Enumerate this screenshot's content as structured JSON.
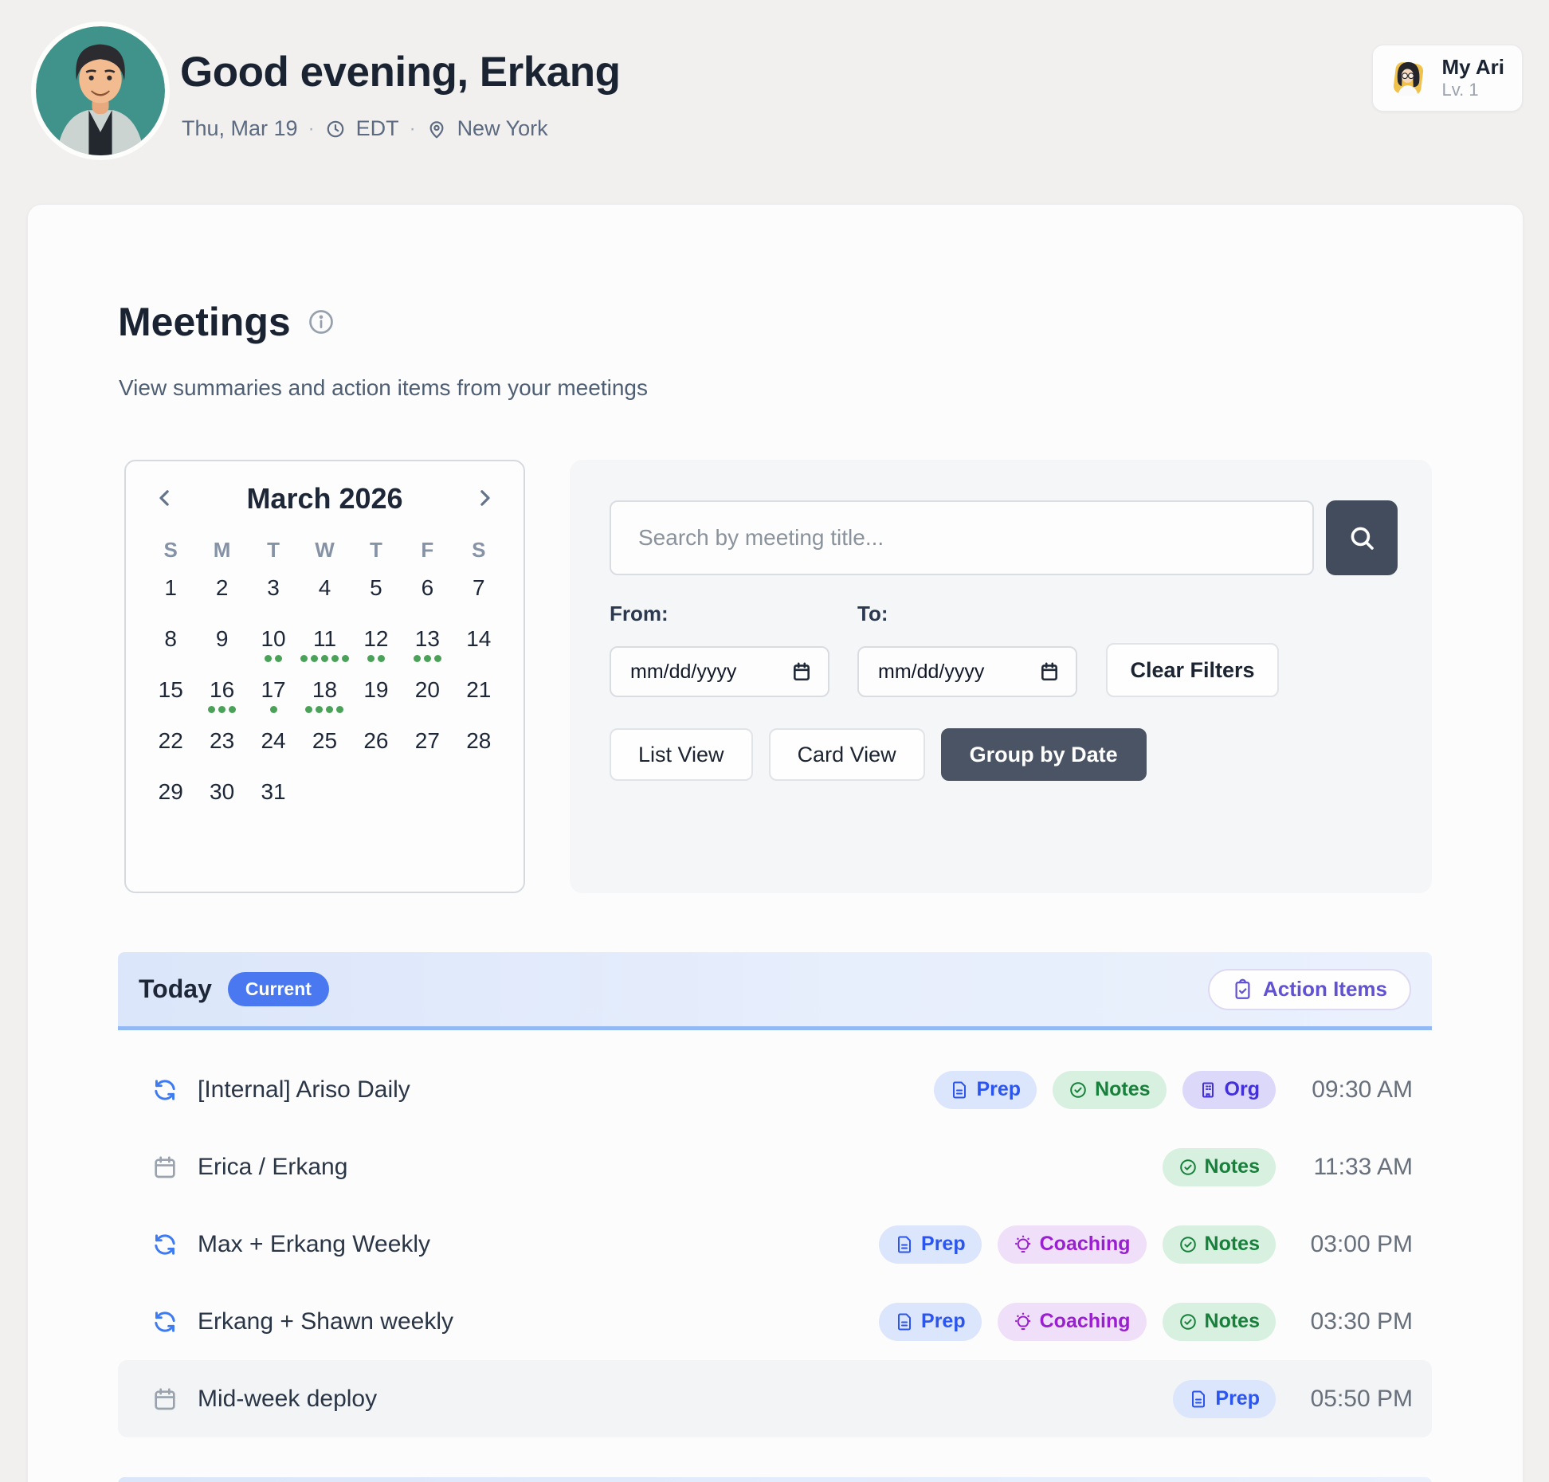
{
  "header": {
    "greeting": "Good evening, Erkang",
    "date": "Thu, Mar 19",
    "separator": "·",
    "timezone": "EDT",
    "location": "New York",
    "ari": {
      "title": "My Ari",
      "level": "Lv. 1"
    }
  },
  "page": {
    "title": "Meetings",
    "subtitle": "View summaries and action items from your meetings"
  },
  "calendar": {
    "month_label": "March 2026",
    "day_headers": [
      "S",
      "M",
      "T",
      "W",
      "T",
      "F",
      "S"
    ],
    "weeks": [
      [
        1,
        2,
        3,
        4,
        5,
        6,
        7
      ],
      [
        8,
        9,
        10,
        11,
        12,
        13,
        14
      ],
      [
        15,
        16,
        17,
        18,
        19,
        20,
        21
      ],
      [
        22,
        23,
        24,
        25,
        26,
        27,
        28
      ],
      [
        29,
        30,
        31,
        null,
        null,
        null,
        null
      ]
    ],
    "event_dots": {
      "10": 2,
      "11": 5,
      "12": 2,
      "13": 3,
      "16": 3,
      "17": 1,
      "18": 4
    },
    "dot_color": "#4aa258"
  },
  "filters": {
    "search_placeholder": "Search by meeting title...",
    "from_label": "From:",
    "to_label": "To:",
    "date_placeholder": "mm/dd/yyyy",
    "clear_button": "Clear Filters",
    "view_buttons": [
      {
        "label": "List View",
        "active": false
      },
      {
        "label": "Card View",
        "active": false
      },
      {
        "label": "Group by Date",
        "active": true
      }
    ]
  },
  "group": {
    "title": "Today",
    "badge": "Current",
    "action_items_label": "Action Items"
  },
  "meetings": [
    {
      "title": "[Internal] Ariso Daily",
      "recurring": true,
      "time": "09:30 AM",
      "tags": [
        "prep",
        "notes",
        "org"
      ],
      "highlighted": false
    },
    {
      "title": "Erica / Erkang",
      "recurring": false,
      "time": "11:33 AM",
      "tags": [
        "notes"
      ],
      "highlighted": false
    },
    {
      "title": "Max + Erkang Weekly",
      "recurring": true,
      "time": "03:00 PM",
      "tags": [
        "prep",
        "coaching",
        "notes"
      ],
      "highlighted": false
    },
    {
      "title": "Erkang + Shawn weekly",
      "recurring": true,
      "time": "03:30 PM",
      "tags": [
        "prep",
        "coaching",
        "notes"
      ],
      "highlighted": false
    },
    {
      "title": "Mid-week deploy",
      "recurring": false,
      "time": "05:50 PM",
      "tags": [
        "prep"
      ],
      "highlighted": true
    }
  ],
  "tag_defs": {
    "prep": {
      "label": "Prep",
      "bg": "#dbe5fc",
      "color": "#2b55ee",
      "icon": "document-icon"
    },
    "notes": {
      "label": "Notes",
      "bg": "#d7f0df",
      "color": "#17803a",
      "icon": "check-circle-icon"
    },
    "org": {
      "label": "Org",
      "bg": "#dbd8fa",
      "color": "#4231da",
      "icon": "building-icon"
    },
    "coaching": {
      "label": "Coaching",
      "bg": "#efdff9",
      "color": "#9a1fd1",
      "icon": "lightbulb-icon"
    }
  },
  "colors": {
    "accent_blue": "#4a78f1",
    "banner_border": "#92b9f3",
    "dark_button": "#4a5464",
    "event_dot_green": "#4aa258",
    "action_items_purple": "#6152d3",
    "recurring_icon_blue": "#3e7bf2"
  }
}
